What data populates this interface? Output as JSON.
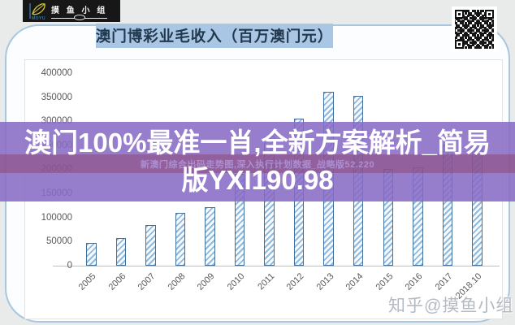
{
  "logo": {
    "brand": "摸 鱼 小 组",
    "sub": "MOYU"
  },
  "header": {
    "title": "澳门博彩业毛收入（百万澳门元）"
  },
  "overlay": {
    "headline_line1": "澳门100%最准一肖,全新方案解析_简易",
    "headline_line2": "版YXI190.98",
    "subline": "新澳门综合出码走势图,深入执行计划数据_战略版52.220"
  },
  "watermark": "知乎@摸鱼小组",
  "chart_data": {
    "type": "bar",
    "title": "澳门博彩业毛收入（百万澳门元）",
    "categories": [
      "2005",
      "2006",
      "2007",
      "2008",
      "2009",
      "2010",
      "2011",
      "2012",
      "2013",
      "2014",
      "2015",
      "2016",
      "2017",
      "2018.10"
    ],
    "values": [
      47000,
      57500,
      84000,
      110000,
      121000,
      190000,
      269000,
      305000,
      361000,
      352000,
      200000,
      205000,
      252000,
      250000
    ],
    "xlabel": "",
    "ylabel": "",
    "ylim": [
      0,
      400000
    ],
    "ytick_step": 50000,
    "ytick_labels": [
      "400000",
      "350000",
      "300000",
      "250000",
      "200000",
      "150000",
      "100000",
      "50000",
      "0"
    ],
    "grid": false,
    "legend_position": "none",
    "bar_style": "diagonal-hatch",
    "bar_border_color": "#41719c",
    "bar_hatch_color": "#9dc3e6"
  },
  "colors": {
    "page_background": "#e8ebe9",
    "title_band": "#a9c7e4",
    "overlay_purple": "#886bc5",
    "overlay_inner_band": "#8c3755",
    "axis_text": "#595959",
    "card_border": "#a9c6df"
  }
}
